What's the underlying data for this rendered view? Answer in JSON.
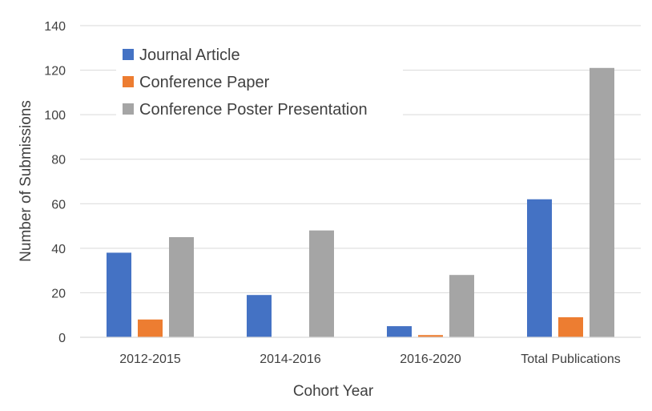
{
  "chart_data": {
    "type": "bar",
    "title": "",
    "xlabel": "Cohort Year",
    "ylabel": "Number of Submissions",
    "ylim": [
      0,
      140
    ],
    "yticks": [
      0,
      20,
      40,
      60,
      80,
      100,
      120,
      140
    ],
    "grid": true,
    "legend_position": "top-left",
    "categories": [
      "2012-2015",
      "2014-2016",
      "2016-2020",
      "Total Publications"
    ],
    "series": [
      {
        "name": "Journal Article",
        "color": "#4472C4",
        "values": [
          38,
          19,
          5,
          62
        ]
      },
      {
        "name": "Conference Paper",
        "color": "#ED7D31",
        "values": [
          8,
          0,
          1,
          9
        ]
      },
      {
        "name": "Conference Poster Presentation",
        "color": "#A5A5A5",
        "values": [
          45,
          48,
          28,
          121
        ]
      }
    ]
  }
}
